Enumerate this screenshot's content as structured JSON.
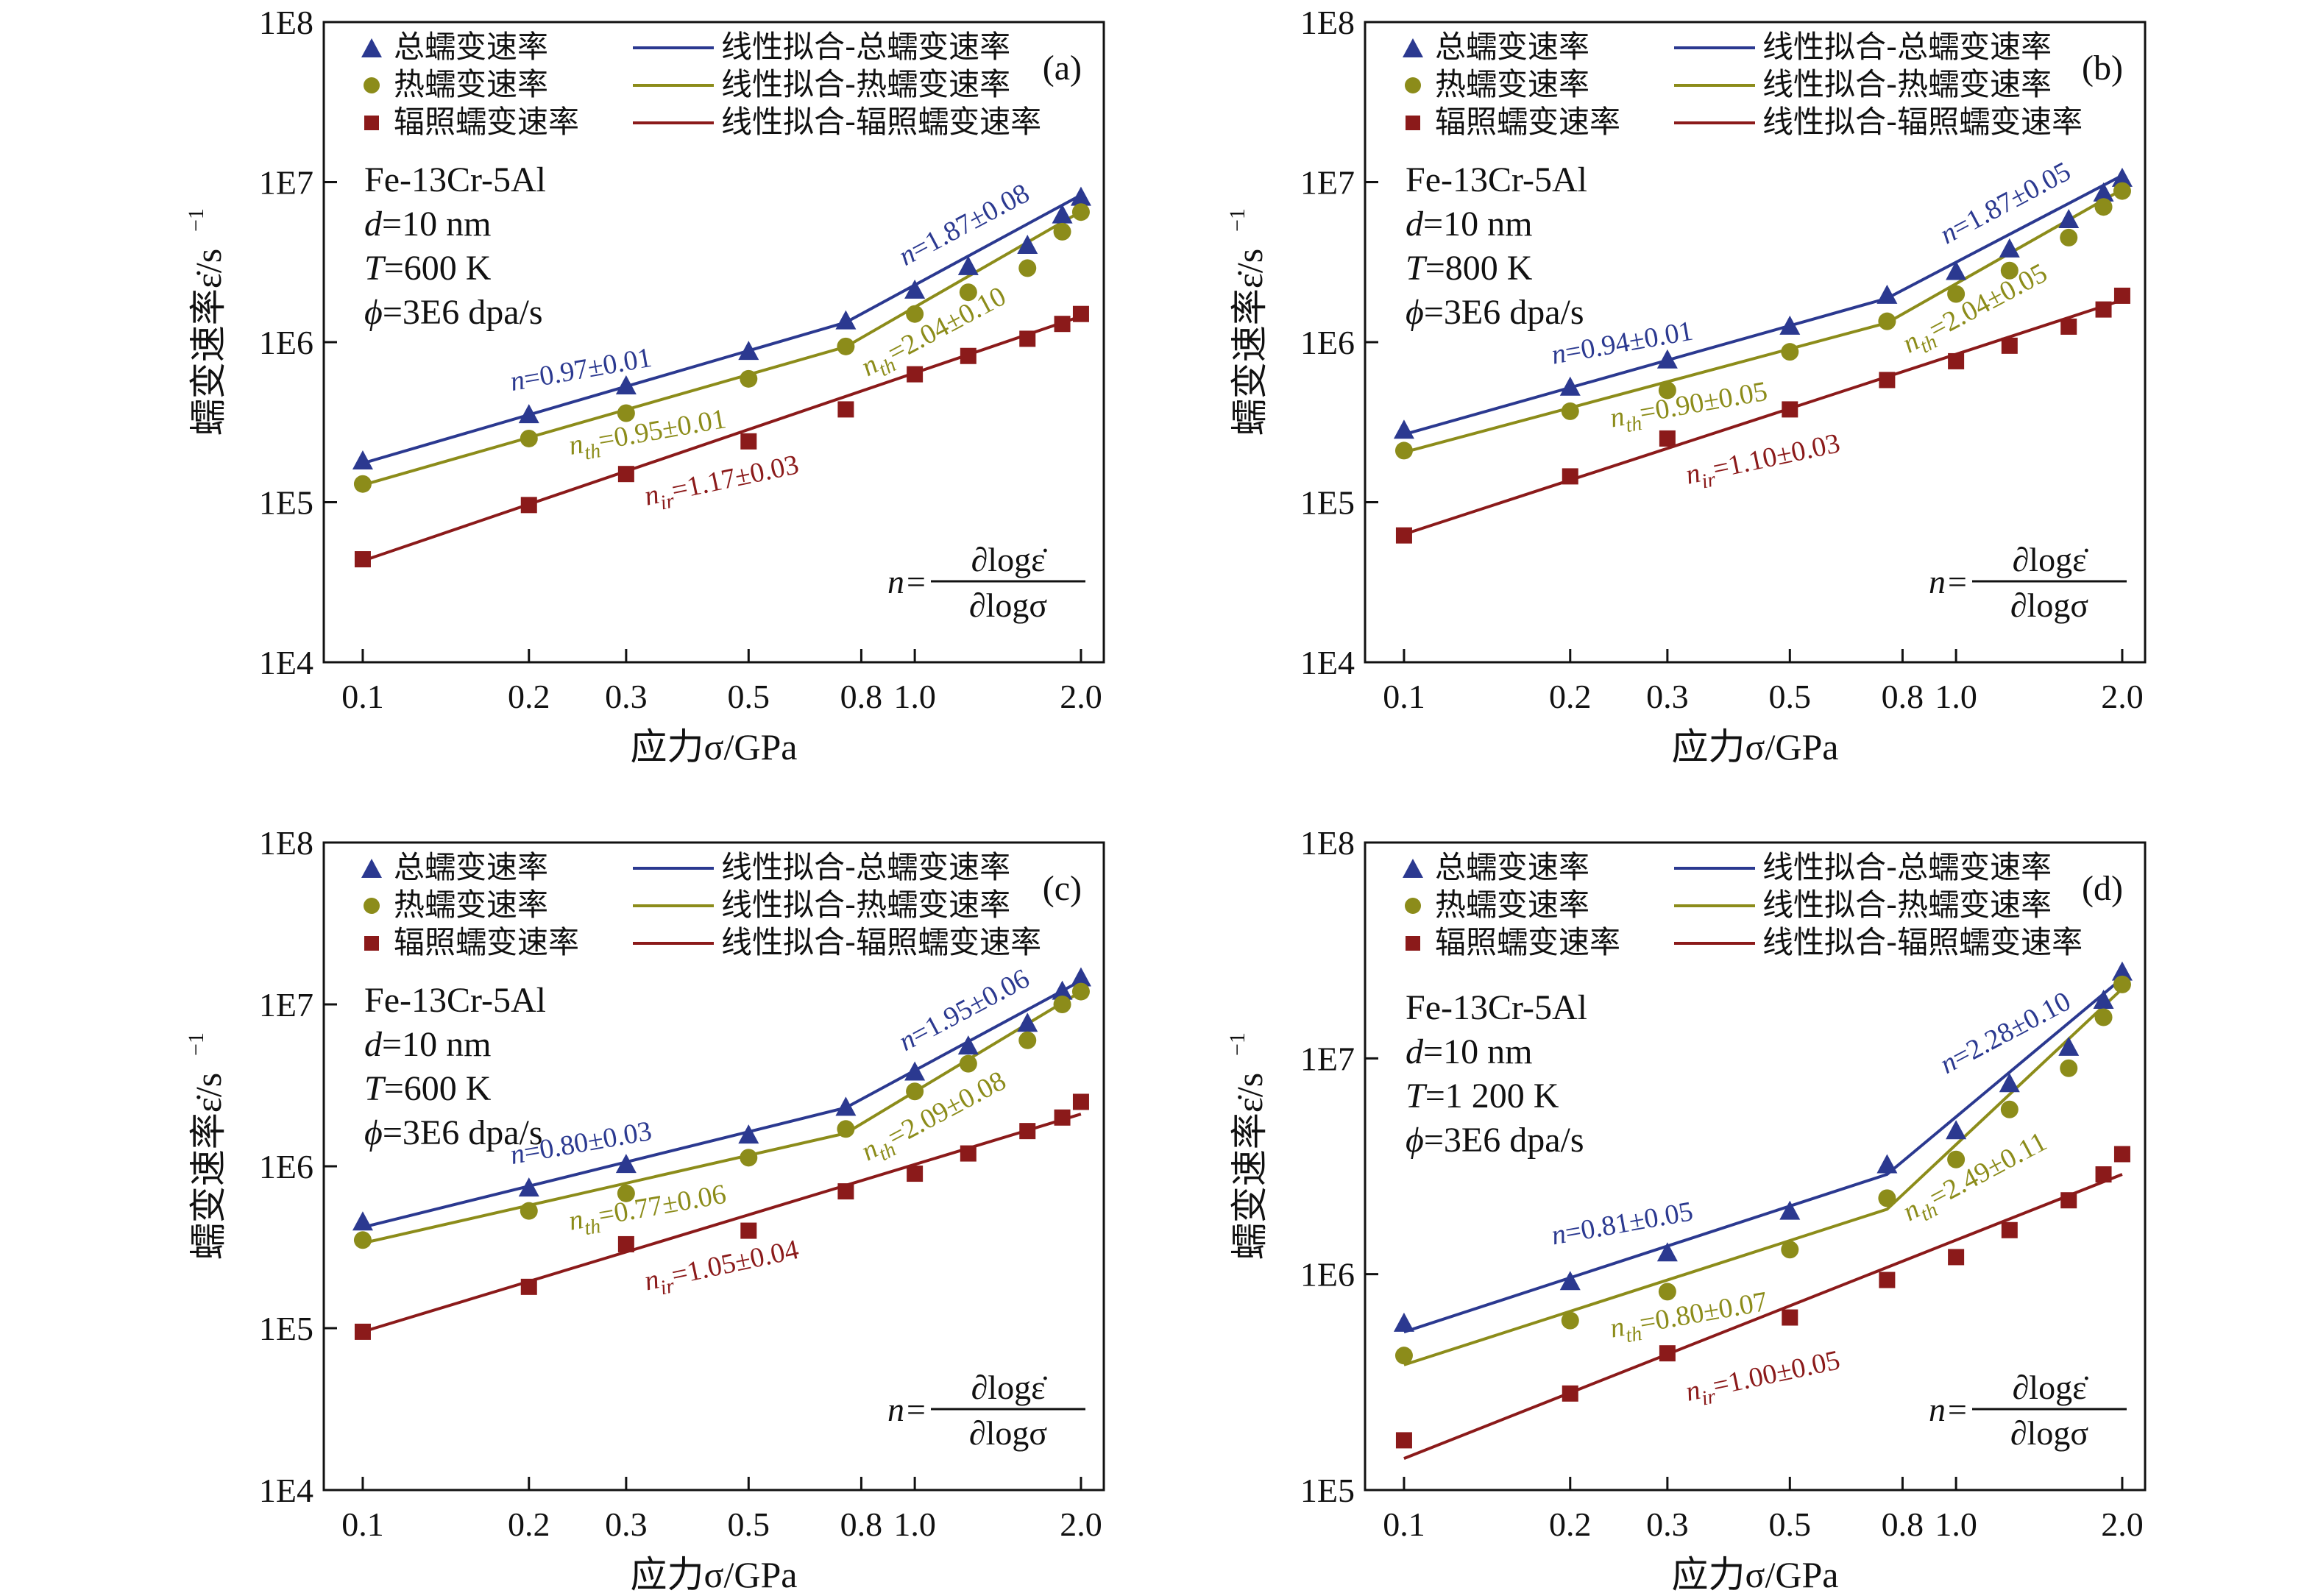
{
  "colors": {
    "total": "#2b3990",
    "thermal": "#8c8c1a",
    "irradiation": "#8b1a1a"
  },
  "common": {
    "xlabel": "应力σ/GPa",
    "ylabel": "蠕变速率ε̇/s",
    "ylabel_sup": "−1",
    "x_ticks": [
      {
        "v": 0.1,
        "t": "0.1"
      },
      {
        "v": 0.2,
        "t": "0.2"
      },
      {
        "v": 0.3,
        "t": "0.3"
      },
      {
        "v": 0.5,
        "t": "0.5"
      },
      {
        "v": 0.8,
        "t": "0.8"
      },
      {
        "v": 1.0,
        "t": "1.0"
      },
      {
        "v": 2.0,
        "t": "2.0"
      }
    ],
    "legend": {
      "total": "总蠕变速率",
      "thermal": "热蠕变速率",
      "irradiation": "辐照蠕变速率",
      "fit_total": "线性拟合-总蠕变速率",
      "fit_thermal": "线性拟合-热蠕变速率",
      "fit_irradiation": "线性拟合-辐照蠕变速率"
    },
    "formula": {
      "lhs": "n=",
      "num": "∂logε̇",
      "den": "∂logσ"
    }
  },
  "chart_data": [
    {
      "type": "scatter",
      "panel": "(a)",
      "xscale": "log",
      "yscale": "log",
      "xlim": [
        0.085,
        2.2
      ],
      "ylim": [
        10000,
        100000000
      ],
      "y_ticks": [
        {
          "v": 10000,
          "t": "1E4"
        },
        {
          "v": 100000,
          "t": "1E5"
        },
        {
          "v": 1000000,
          "t": "1E6"
        },
        {
          "v": 10000000,
          "t": "1E7"
        },
        {
          "v": 100000000,
          "t": "1E8"
        }
      ],
      "info": [
        "Fe-13Cr-5Al",
        "d=10 nm",
        "T=600 K",
        "ϕ=3E6 dpa/s"
      ],
      "annotations": {
        "total_low": "n=0.97±0.01",
        "total_high": "n=1.87±0.08",
        "thermal_low": "nth=0.95±0.01",
        "thermal_high": "nth=2.04±0.10",
        "irradiation": "nir=1.17±0.03"
      },
      "x": [
        0.1,
        0.2,
        0.3,
        0.5,
        0.75,
        1.0,
        1.25,
        1.6,
        1.85,
        2.0
      ],
      "series": [
        {
          "key": "total",
          "marker": "triangle",
          "values": [
            180000,
            350000,
            530000,
            870000,
            1350000,
            2100000,
            2950000,
            4000000,
            6200000,
            8000000
          ]
        },
        {
          "key": "thermal",
          "marker": "circle",
          "values": [
            130000,
            250000,
            360000,
            590000,
            940000,
            1500000,
            2050000,
            2900000,
            4900000,
            6500000
          ]
        },
        {
          "key": "irradiation",
          "marker": "square",
          "values": [
            44000,
            96000,
            150000,
            240000,
            380000,
            630000,
            820000,
            1050000,
            1300000,
            1500000
          ]
        }
      ],
      "fits": [
        {
          "key": "total",
          "points": [
            [
              0.1,
              175000
            ],
            [
              0.75,
              1330000
            ],
            [
              2.0,
              8300000
            ]
          ]
        },
        {
          "key": "thermal",
          "points": [
            [
              0.1,
              128000
            ],
            [
              0.75,
              935000
            ],
            [
              2.0,
              6550000
            ]
          ]
        },
        {
          "key": "irradiation",
          "points": [
            [
              0.1,
              43000
            ],
            [
              2.0,
              1450000
            ]
          ]
        }
      ]
    },
    {
      "type": "scatter",
      "panel": "(b)",
      "xscale": "log",
      "yscale": "log",
      "xlim": [
        0.085,
        2.2
      ],
      "ylim": [
        10000,
        100000000
      ],
      "y_ticks": [
        {
          "v": 10000,
          "t": "1E4"
        },
        {
          "v": 100000,
          "t": "1E5"
        },
        {
          "v": 1000000,
          "t": "1E6"
        },
        {
          "v": 10000000,
          "t": "1E7"
        },
        {
          "v": 100000000,
          "t": "1E8"
        }
      ],
      "info": [
        "Fe-13Cr-5Al",
        "d=10 nm",
        "T=800 K",
        "ϕ=3E6 dpa/s"
      ],
      "annotations": {
        "total_low": "n=0.94±0.01",
        "total_high": "n=1.87±0.05",
        "thermal_low": "nth=0.90±0.05",
        "thermal_high": "nth=2.04±0.05",
        "irradiation": "nir=1.10±0.03"
      },
      "x": [
        0.1,
        0.2,
        0.3,
        0.5,
        0.75,
        1.0,
        1.25,
        1.6,
        1.85,
        2.0
      ],
      "series": [
        {
          "key": "total",
          "marker": "triangle",
          "values": [
            280000,
            520000,
            770000,
            1250000,
            1950000,
            2750000,
            3800000,
            5800000,
            8500000,
            10500000
          ]
        },
        {
          "key": "thermal",
          "marker": "circle",
          "values": [
            210000,
            370000,
            500000,
            870000,
            1350000,
            2000000,
            2800000,
            4500000,
            7000000,
            8800000
          ]
        },
        {
          "key": "irradiation",
          "marker": "square",
          "values": [
            62000,
            145000,
            250000,
            380000,
            580000,
            760000,
            950000,
            1250000,
            1600000,
            1950000
          ]
        }
      ],
      "fits": [
        {
          "key": "total",
          "points": [
            [
              0.1,
              265000
            ],
            [
              0.75,
              1880000
            ],
            [
              2.0,
              11000000
            ]
          ]
        },
        {
          "key": "thermal",
          "points": [
            [
              0.1,
              205000
            ],
            [
              0.75,
              1320000
            ],
            [
              2.0,
              9000000
            ]
          ]
        },
        {
          "key": "irradiation",
          "points": [
            [
              0.1,
              63000
            ],
            [
              2.0,
              1830000
            ]
          ]
        }
      ]
    },
    {
      "type": "scatter",
      "panel": "(c)",
      "xscale": "log",
      "yscale": "log",
      "xlim": [
        0.085,
        2.2
      ],
      "ylim": [
        10000,
        100000000
      ],
      "y_ticks": [
        {
          "v": 10000,
          "t": "1E4"
        },
        {
          "v": 100000,
          "t": "1E5"
        },
        {
          "v": 1000000,
          "t": "1E6"
        },
        {
          "v": 10000000,
          "t": "1E7"
        },
        {
          "v": 100000000,
          "t": "1E8"
        }
      ],
      "info": [
        "Fe-13Cr-5Al",
        "d=10 nm",
        "T=600 K",
        "ϕ=3E6 dpa/s"
      ],
      "annotations": {
        "total_low": "n=0.80±0.03",
        "total_high": "n=1.95±0.06",
        "thermal_low": "nth=0.77±0.06",
        "thermal_high": "nth=2.09±0.08",
        "irradiation": "nir=1.05±0.04"
      },
      "x": [
        0.1,
        0.2,
        0.3,
        0.5,
        0.75,
        1.0,
        1.25,
        1.6,
        1.85,
        2.0
      ],
      "series": [
        {
          "key": "total",
          "marker": "triangle",
          "values": [
            450000,
            730000,
            1020000,
            1550000,
            2300000,
            3800000,
            5500000,
            7600000,
            12000000,
            14500000
          ]
        },
        {
          "key": "thermal",
          "marker": "circle",
          "values": [
            350000,
            530000,
            680000,
            1130000,
            1700000,
            2900000,
            4300000,
            6000000,
            10000000,
            12000000
          ]
        },
        {
          "key": "irradiation",
          "marker": "square",
          "values": [
            95000,
            180000,
            330000,
            400000,
            700000,
            900000,
            1200000,
            1650000,
            2000000,
            2500000
          ]
        }
      ],
      "fits": [
        {
          "key": "total",
          "points": [
            [
              0.1,
              420000
            ],
            [
              0.75,
              2300000
            ],
            [
              2.0,
              14000000
            ]
          ]
        },
        {
          "key": "thermal",
          "points": [
            [
              0.1,
              335000
            ],
            [
              0.75,
              1600000
            ],
            [
              2.0,
              12000000
            ]
          ]
        },
        {
          "key": "irradiation",
          "points": [
            [
              0.1,
              95000
            ],
            [
              2.0,
              2100000
            ]
          ]
        }
      ]
    },
    {
      "type": "scatter",
      "panel": "(d)",
      "xscale": "log",
      "yscale": "log",
      "xlim": [
        0.085,
        2.2
      ],
      "ylim": [
        100000,
        100000000
      ],
      "y_ticks": [
        {
          "v": 100000,
          "t": "1E5"
        },
        {
          "v": 1000000,
          "t": "1E6"
        },
        {
          "v": 10000000,
          "t": "1E7"
        },
        {
          "v": 100000000,
          "t": "1E8"
        }
      ],
      "info": [
        "Fe-13Cr-5Al",
        "d=10 nm",
        "T=1 200 K",
        "ϕ=3E6 dpa/s"
      ],
      "annotations": {
        "total_low": "n=0.81±0.05",
        "total_high": "n=2.28±0.10",
        "thermal_low": "nth=0.80±0.07",
        "thermal_high": "nth=2.49±0.11",
        "irradiation": "nir=1.00±0.05"
      },
      "x": [
        0.1,
        0.2,
        0.3,
        0.5,
        0.75,
        1.0,
        1.25,
        1.6,
        1.85,
        2.0
      ],
      "series": [
        {
          "key": "total",
          "marker": "triangle",
          "values": [
            590000,
            920000,
            1250000,
            1950000,
            3200000,
            4600000,
            7600000,
            11200000,
            18500000,
            25000000
          ]
        },
        {
          "key": "thermal",
          "marker": "circle",
          "values": [
            420000,
            610000,
            830000,
            1300000,
            2250000,
            3400000,
            5800000,
            9000000,
            15500000,
            22000000
          ]
        },
        {
          "key": "irradiation",
          "marker": "square",
          "values": [
            170000,
            280000,
            430000,
            630000,
            940000,
            1200000,
            1600000,
            2200000,
            2900000,
            3600000
          ]
        }
      ],
      "fits": [
        {
          "key": "total",
          "points": [
            [
              0.1,
              540000
            ],
            [
              0.75,
              2900000
            ],
            [
              2.0,
              23500000
            ]
          ]
        },
        {
          "key": "thermal",
          "points": [
            [
              0.1,
              380000
            ],
            [
              0.75,
              2000000
            ],
            [
              2.0,
              21000000
            ]
          ]
        },
        {
          "key": "irradiation",
          "points": [
            [
              0.1,
              140000
            ],
            [
              2.0,
              2900000
            ]
          ]
        }
      ]
    }
  ]
}
